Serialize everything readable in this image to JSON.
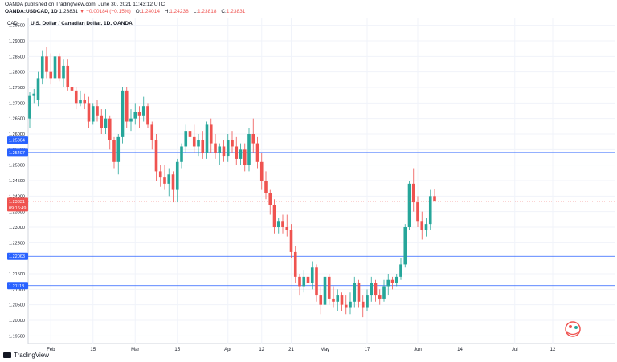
{
  "header": {
    "publish_line": "OANDA published on TradingView.com, June 30, 2021 11:43:12 UTC",
    "symbol": "OANDA:USDCAD, 1D",
    "last": "1.23831",
    "change": "▼ −0.00184 (−0.15%)",
    "o_label": "O:",
    "o_val": "1.24014",
    "h_label": "H:",
    "h_val": "1.24238",
    "l_label": "L:",
    "l_val": "1.23818",
    "c_label": "C:",
    "c_val": "1.23831"
  },
  "footer": {
    "brand": "TradingView"
  },
  "colors": {
    "up": "#26a69a",
    "down": "#ef5350",
    "hline": "#2962ff",
    "grid": "#f0f3fa",
    "axis_text": "#131722"
  },
  "chart_data": {
    "type": "candlestick",
    "title": "U.S. Dollar / Canadian Dollar, 1D, OANDA",
    "currency_label": "CAD",
    "ylim": [
      1.1925,
      1.2975
    ],
    "y_ticks": [
      1.195,
      1.2,
      1.205,
      1.21,
      1.215,
      1.22,
      1.225,
      1.23,
      1.235,
      1.24,
      1.245,
      1.25,
      1.255,
      1.26,
      1.265,
      1.27,
      1.275,
      1.28,
      1.285,
      1.29,
      1.295
    ],
    "y_tick_labels": [
      "1.19500",
      "1.20000",
      "1.20500",
      "1.21000",
      "1.21500",
      "1.22000",
      "1.22500",
      "1.23000",
      "1.23500",
      "1.24000",
      "1.24500",
      "1.25000",
      "1.25500",
      "1.26000",
      "1.26500",
      "1.27000",
      "1.27500",
      "1.28000",
      "1.28500",
      "1.29000",
      "1.29500"
    ],
    "x_ticks": [
      {
        "label": "Feb",
        "index": 5
      },
      {
        "label": "15",
        "index": 15
      },
      {
        "label": "Mar",
        "index": 25
      },
      {
        "label": "15",
        "index": 35
      },
      {
        "label": "Apr",
        "index": 47
      },
      {
        "label": "12",
        "index": 55
      },
      {
        "label": "21",
        "index": 62
      },
      {
        "label": "May",
        "index": 70
      },
      {
        "label": "17",
        "index": 80
      },
      {
        "label": "Jun",
        "index": 92
      },
      {
        "label": "14",
        "index": 102
      },
      {
        "label": "Jul",
        "index": 115
      },
      {
        "label": "12",
        "index": 124
      }
    ],
    "horizontal_lines": [
      {
        "value": 1.25804,
        "label": "1.25804"
      },
      {
        "value": 1.25407,
        "label": "1.25407"
      },
      {
        "value": 1.22063,
        "label": "1.22063"
      },
      {
        "value": 1.21118,
        "label": "1.21118"
      }
    ],
    "last_price": {
      "value": 1.23831,
      "label": "1.23831",
      "countdown": "09:16:49"
    },
    "candles": [
      [
        1.265,
        1.2735,
        1.262,
        1.2725
      ],
      [
        1.2725,
        1.2745,
        1.27,
        1.273
      ],
      [
        1.271,
        1.28,
        1.269,
        1.278
      ],
      [
        1.278,
        1.287,
        1.276,
        1.285
      ],
      [
        1.285,
        1.288,
        1.278,
        1.28
      ],
      [
        1.28,
        1.286,
        1.276,
        1.278
      ],
      [
        1.278,
        1.286,
        1.276,
        1.285
      ],
      [
        1.285,
        1.286,
        1.277,
        1.278
      ],
      [
        1.278,
        1.284,
        1.275,
        1.282
      ],
      [
        1.282,
        1.284,
        1.274,
        1.275
      ],
      [
        1.275,
        1.276,
        1.271,
        1.274
      ],
      [
        1.274,
        1.275,
        1.268,
        1.27
      ],
      [
        1.27,
        1.274,
        1.269,
        1.271
      ],
      [
        1.271,
        1.273,
        1.268,
        1.27
      ],
      [
        1.27,
        1.272,
        1.262,
        1.264
      ],
      [
        1.264,
        1.27,
        1.263,
        1.269
      ],
      [
        1.269,
        1.271,
        1.264,
        1.266
      ],
      [
        1.266,
        1.268,
        1.26,
        1.262
      ],
      [
        1.262,
        1.268,
        1.26,
        1.265
      ],
      [
        1.265,
        1.266,
        1.255,
        1.258
      ],
      [
        1.258,
        1.259,
        1.249,
        1.251
      ],
      [
        1.251,
        1.26,
        1.247,
        1.259
      ],
      [
        1.259,
        1.275,
        1.257,
        1.274
      ],
      [
        1.274,
        1.275,
        1.262,
        1.264
      ],
      [
        1.264,
        1.268,
        1.261,
        1.265
      ],
      [
        1.265,
        1.27,
        1.263,
        1.267
      ],
      [
        1.267,
        1.269,
        1.262,
        1.266
      ],
      [
        1.266,
        1.272,
        1.264,
        1.269
      ],
      [
        1.269,
        1.27,
        1.262,
        1.263
      ],
      [
        1.263,
        1.264,
        1.255,
        1.258
      ],
      [
        1.258,
        1.26,
        1.245,
        1.248
      ],
      [
        1.248,
        1.25,
        1.243,
        1.246
      ],
      [
        1.246,
        1.25,
        1.242,
        1.244
      ],
      [
        1.244,
        1.249,
        1.24,
        1.247
      ],
      [
        1.247,
        1.248,
        1.238,
        1.242
      ],
      [
        1.242,
        1.252,
        1.238,
        1.251
      ],
      [
        1.251,
        1.257,
        1.249,
        1.256
      ],
      [
        1.256,
        1.263,
        1.254,
        1.261
      ],
      [
        1.261,
        1.264,
        1.257,
        1.259
      ],
      [
        1.259,
        1.263,
        1.254,
        1.256
      ],
      [
        1.256,
        1.26,
        1.253,
        1.258
      ],
      [
        1.258,
        1.261,
        1.252,
        1.254
      ],
      [
        1.254,
        1.264,
        1.252,
        1.263
      ],
      [
        1.263,
        1.265,
        1.254,
        1.257
      ],
      [
        1.257,
        1.26,
        1.252,
        1.254
      ],
      [
        1.254,
        1.257,
        1.25,
        1.256
      ],
      [
        1.256,
        1.258,
        1.251,
        1.253
      ],
      [
        1.253,
        1.26,
        1.251,
        1.258
      ],
      [
        1.258,
        1.261,
        1.254,
        1.256
      ],
      [
        1.256,
        1.259,
        1.25,
        1.252
      ],
      [
        1.252,
        1.257,
        1.25,
        1.255
      ],
      [
        1.255,
        1.257,
        1.248,
        1.25
      ],
      [
        1.25,
        1.262,
        1.248,
        1.26
      ],
      [
        1.26,
        1.265,
        1.254,
        1.257
      ],
      [
        1.257,
        1.259,
        1.249,
        1.251
      ],
      [
        1.251,
        1.254,
        1.242,
        1.245
      ],
      [
        1.245,
        1.248,
        1.239,
        1.241
      ],
      [
        1.241,
        1.242,
        1.234,
        1.237
      ],
      [
        1.237,
        1.239,
        1.228,
        1.23
      ],
      [
        1.23,
        1.233,
        1.228,
        1.232
      ],
      [
        1.232,
        1.234,
        1.228,
        1.23
      ],
      [
        1.23,
        1.234,
        1.227,
        1.229
      ],
      [
        1.229,
        1.231,
        1.22,
        1.222
      ],
      [
        1.222,
        1.224,
        1.212,
        1.214
      ],
      [
        1.214,
        1.215,
        1.208,
        1.211
      ],
      [
        1.211,
        1.216,
        1.209,
        1.214
      ],
      [
        1.214,
        1.218,
        1.21,
        1.212
      ],
      [
        1.212,
        1.219,
        1.21,
        1.217
      ],
      [
        1.217,
        1.218,
        1.206,
        1.208
      ],
      [
        1.208,
        1.211,
        1.202,
        1.205
      ],
      [
        1.205,
        1.216,
        1.204,
        1.214
      ],
      [
        1.214,
        1.215,
        1.205,
        1.207
      ],
      [
        1.207,
        1.211,
        1.204,
        1.206
      ],
      [
        1.206,
        1.21,
        1.203,
        1.208
      ],
      [
        1.208,
        1.209,
        1.203,
        1.205
      ],
      [
        1.205,
        1.208,
        1.202,
        1.204
      ],
      [
        1.204,
        1.209,
        1.202,
        1.206
      ],
      [
        1.206,
        1.214,
        1.204,
        1.212
      ],
      [
        1.212,
        1.213,
        1.204,
        1.206
      ],
      [
        1.206,
        1.208,
        1.201,
        1.204
      ],
      [
        1.204,
        1.21,
        1.203,
        1.208
      ],
      [
        1.208,
        1.214,
        1.206,
        1.212
      ],
      [
        1.212,
        1.213,
        1.206,
        1.208
      ],
      [
        1.208,
        1.21,
        1.205,
        1.207
      ],
      [
        1.207,
        1.213,
        1.206,
        1.211
      ],
      [
        1.211,
        1.215,
        1.208,
        1.213
      ],
      [
        1.213,
        1.214,
        1.21,
        1.212
      ],
      [
        1.212,
        1.215,
        1.211,
        1.214
      ],
      [
        1.214,
        1.22,
        1.213,
        1.218
      ],
      [
        1.218,
        1.231,
        1.217,
        1.23
      ],
      [
        1.23,
        1.245,
        1.229,
        1.244
      ],
      [
        1.244,
        1.249,
        1.235,
        1.238
      ],
      [
        1.238,
        1.24,
        1.23,
        1.232
      ],
      [
        1.232,
        1.235,
        1.226,
        1.229
      ],
      [
        1.229,
        1.233,
        1.227,
        1.231
      ],
      [
        1.231,
        1.242,
        1.229,
        1.24
      ],
      [
        1.24,
        1.2424,
        1.2382,
        1.2383
      ]
    ]
  }
}
